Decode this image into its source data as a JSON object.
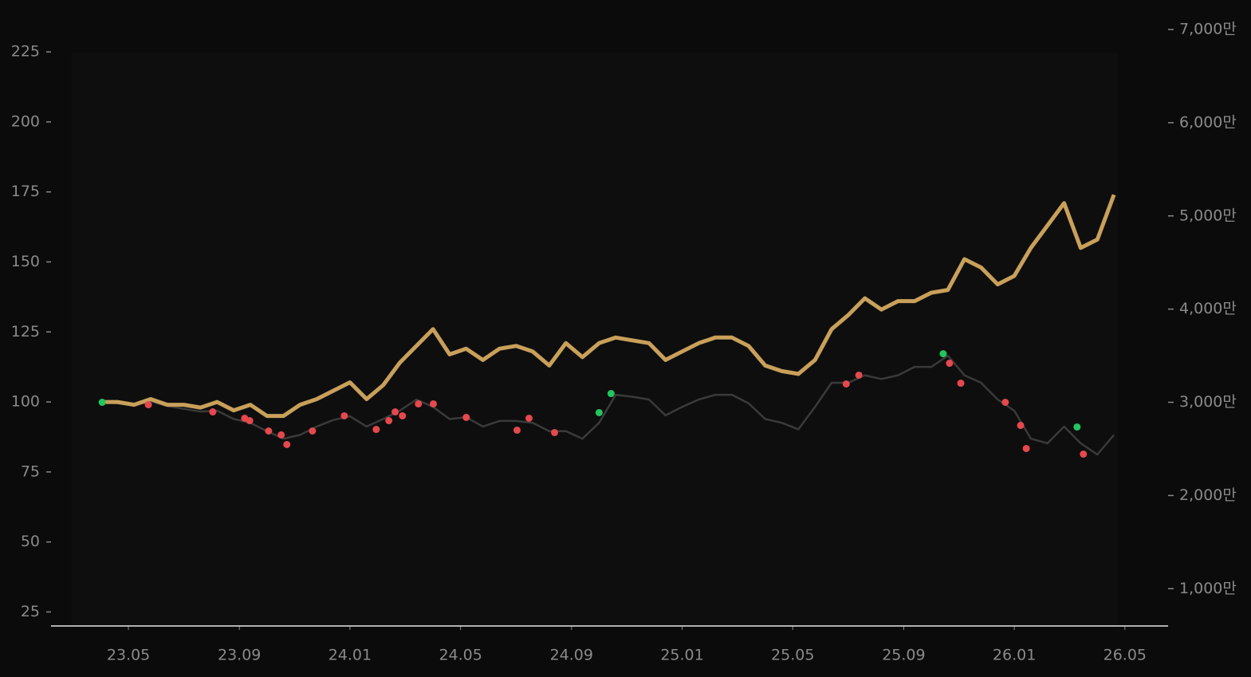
{
  "chart_data": {
    "type": "line",
    "x": [
      2023.25,
      2023.3,
      2023.35,
      2023.4,
      2023.45,
      2023.5,
      2023.55,
      2023.6,
      2023.65,
      2023.7,
      2023.75,
      2023.8,
      2023.85,
      2023.9,
      2023.95,
      2024.0,
      2024.05,
      2024.1,
      2024.15,
      2024.2,
      2024.25,
      2024.3,
      2024.35,
      2024.4,
      2024.45,
      2024.5,
      2024.55,
      2024.6,
      2024.65,
      2024.7,
      2024.75,
      2024.8,
      2024.85,
      2024.9,
      2024.95,
      2025.0,
      2025.05,
      2025.1,
      2025.15,
      2025.2,
      2025.25,
      2025.3,
      2025.35,
      2025.4,
      2025.45,
      2025.5,
      2025.55,
      2025.6,
      2025.65,
      2025.7,
      2025.75,
      2025.8,
      2025.85,
      2025.9,
      2025.95,
      2026.0,
      2026.05,
      2026.1,
      2026.15,
      2026.2,
      2026.25,
      2026.3
    ],
    "series": [
      {
        "color": "#c9a05a",
        "values": [
          100,
          100,
          99,
          101,
          99,
          99,
          98,
          100,
          97,
          99,
          95,
          95,
          99,
          101,
          104,
          107,
          101,
          106,
          114,
          120,
          126,
          117,
          119,
          115,
          119,
          120,
          118,
          113,
          121,
          116,
          121,
          123,
          122,
          121,
          115,
          118,
          121,
          123,
          123,
          120,
          113,
          111,
          110,
          115,
          126,
          131,
          137,
          133,
          136,
          136,
          139,
          140,
          151,
          148,
          142,
          145,
          155,
          163,
          171,
          155,
          158,
          174
        ]
      },
      {
        "color": "#3a3a3a",
        "axis": "y2",
        "values": [
          3000,
          2990,
          2970,
          3010,
          2960,
          2930,
          2900,
          2910,
          2820,
          2780,
          2690,
          2610,
          2650,
          2740,
          2810,
          2850,
          2740,
          2820,
          2910,
          3030,
          2950,
          2820,
          2840,
          2740,
          2800,
          2800,
          2780,
          2690,
          2690,
          2610,
          2780,
          3080,
          3060,
          3030,
          2860,
          2950,
          3030,
          3080,
          3080,
          2990,
          2820,
          2780,
          2710,
          2950,
          3210,
          3210,
          3290,
          3250,
          3290,
          3380,
          3380,
          3500,
          3290,
          3210,
          3030,
          2910,
          2610,
          2560,
          2740,
          2560,
          2440,
          2650
        ]
      },
      {
        "type": "scatter",
        "color": "#22c55e",
        "axis": "y2",
        "x": [
          2023.254,
          2024.75,
          2024.786,
          2025.786,
          2026.189
        ],
        "values": [
          3000,
          2889,
          3094,
          3521,
          2735
        ]
      },
      {
        "type": "scatter",
        "color": "#e5484d",
        "axis": "y2",
        "x": [
          2023.393,
          2023.587,
          2023.683,
          2023.698,
          2023.755,
          2023.793,
          2023.81,
          2023.887,
          2023.983,
          2024.079,
          2024.117,
          2024.136,
          2024.158,
          2024.206,
          2024.251,
          2024.35,
          2024.503,
          2024.539,
          2024.616,
          2025.494,
          2025.532,
          2025.805,
          2025.839,
          2025.973,
          2026.019,
          2026.036,
          2026.208
        ],
        "values": [
          2974,
          2897,
          2829,
          2803,
          2692,
          2650,
          2547,
          2692,
          2855,
          2709,
          2803,
          2897,
          2855,
          2983,
          2983,
          2838,
          2701,
          2829,
          2675,
          3197,
          3291,
          3419,
          3205,
          3000,
          2752,
          2504,
          2444
        ]
      }
    ],
    "xlim": [
      2023.1,
      2026.463
    ],
    "xticks": [
      {
        "value": 2023.333,
        "label": "23.05"
      },
      {
        "value": 2023.667,
        "label": "23.09"
      },
      {
        "value": 2024.0,
        "label": "24.01"
      },
      {
        "value": 2024.333,
        "label": "24.05"
      },
      {
        "value": 2024.667,
        "label": "24.09"
      },
      {
        "value": 2025.0,
        "label": "25.01"
      },
      {
        "value": 2025.333,
        "label": "25.05"
      },
      {
        "value": 2025.667,
        "label": "25.09"
      },
      {
        "value": 2026.0,
        "label": "26.01"
      },
      {
        "value": 2026.333,
        "label": "26.05"
      }
    ],
    "ylim": [
      20,
      233
    ],
    "yticks": [
      25,
      50,
      75,
      100,
      125,
      150,
      175,
      200,
      225
    ],
    "y2lim": [
      600,
      7000
    ],
    "y2ticks": [
      {
        "value": 1000,
        "label": "1,000만"
      },
      {
        "value": 2000,
        "label": "2,000만"
      },
      {
        "value": 3000,
        "label": "3,000만"
      },
      {
        "value": 4000,
        "label": "4,000만"
      },
      {
        "value": 5000,
        "label": "5,000만"
      },
      {
        "value": 6000,
        "label": "6,000만"
      },
      {
        "value": 7000,
        "label": "7,000만"
      }
    ],
    "grid": false
  }
}
